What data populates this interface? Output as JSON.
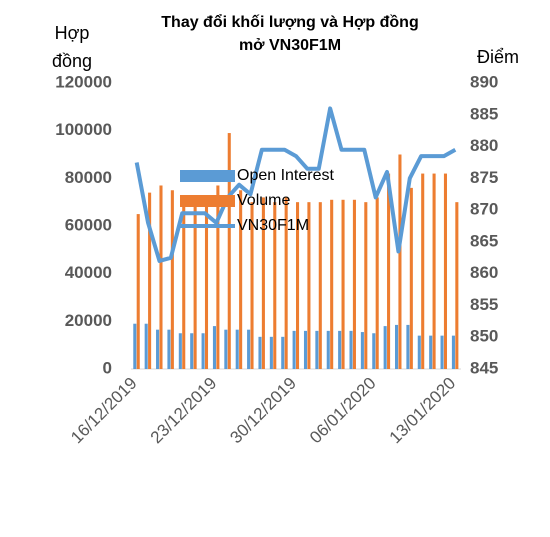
{
  "chart_data": {
    "type": "bar-line",
    "title": [
      "Thay đổi khối lượng và Hợp đồng",
      "mở VN30F1M"
    ],
    "y_label": [
      "Hợp",
      "đồng"
    ],
    "y2_label": "Điểm",
    "categories": [
      "16/12/2019",
      null,
      null,
      null,
      null,
      null,
      null,
      "23/12/2019",
      null,
      null,
      null,
      null,
      null,
      null,
      "30/12/2019",
      null,
      null,
      null,
      null,
      null,
      null,
      "06/01/2020",
      null,
      null,
      null,
      null,
      null,
      null,
      "13/01/2020"
    ],
    "series": [
      {
        "name": "Open Interest",
        "type": "bar",
        "color": "#5b9bd5",
        "values": [
          19000,
          19000,
          16500,
          16500,
          15000,
          15000,
          15000,
          18000,
          16500,
          16500,
          16500,
          13500,
          13500,
          13500,
          16000,
          16000,
          16000,
          16000,
          16000,
          16000,
          15500,
          15000,
          18000,
          18500,
          18500,
          14000,
          14000,
          14000,
          14000
        ]
      },
      {
        "name": "Volume",
        "type": "bar",
        "color": "#ed7d31",
        "values": [
          65000,
          74000,
          77000,
          75000,
          73000,
          73000,
          71000,
          77000,
          99000,
          75000,
          70000,
          72000,
          70000,
          72000,
          70000,
          70000,
          70000,
          71000,
          71000,
          71000,
          70000,
          72000,
          82000,
          90000,
          76000,
          82000,
          82000,
          82000,
          70000
        ]
      },
      {
        "name": "VN30F1M",
        "type": "line",
        "axis": "y2",
        "color": "#5b9bd5",
        "values": [
          877.5,
          868,
          862,
          862.5,
          869.5,
          869.5,
          869.5,
          868,
          872,
          874,
          872.5,
          879.5,
          879.5,
          879.5,
          878.5,
          876.5,
          876.5,
          886,
          879.5,
          879.5,
          879.5,
          872,
          876,
          863.5,
          875,
          878.5,
          878.5,
          878.5,
          879.5
        ]
      }
    ],
    "ylim": [
      0,
      120000
    ],
    "yticks": [
      0,
      20000,
      40000,
      60000,
      80000,
      100000,
      120000
    ],
    "y2lim": [
      845,
      890
    ],
    "y2ticks": [
      845,
      850,
      855,
      860,
      865,
      870,
      875,
      880,
      885,
      890
    ]
  }
}
